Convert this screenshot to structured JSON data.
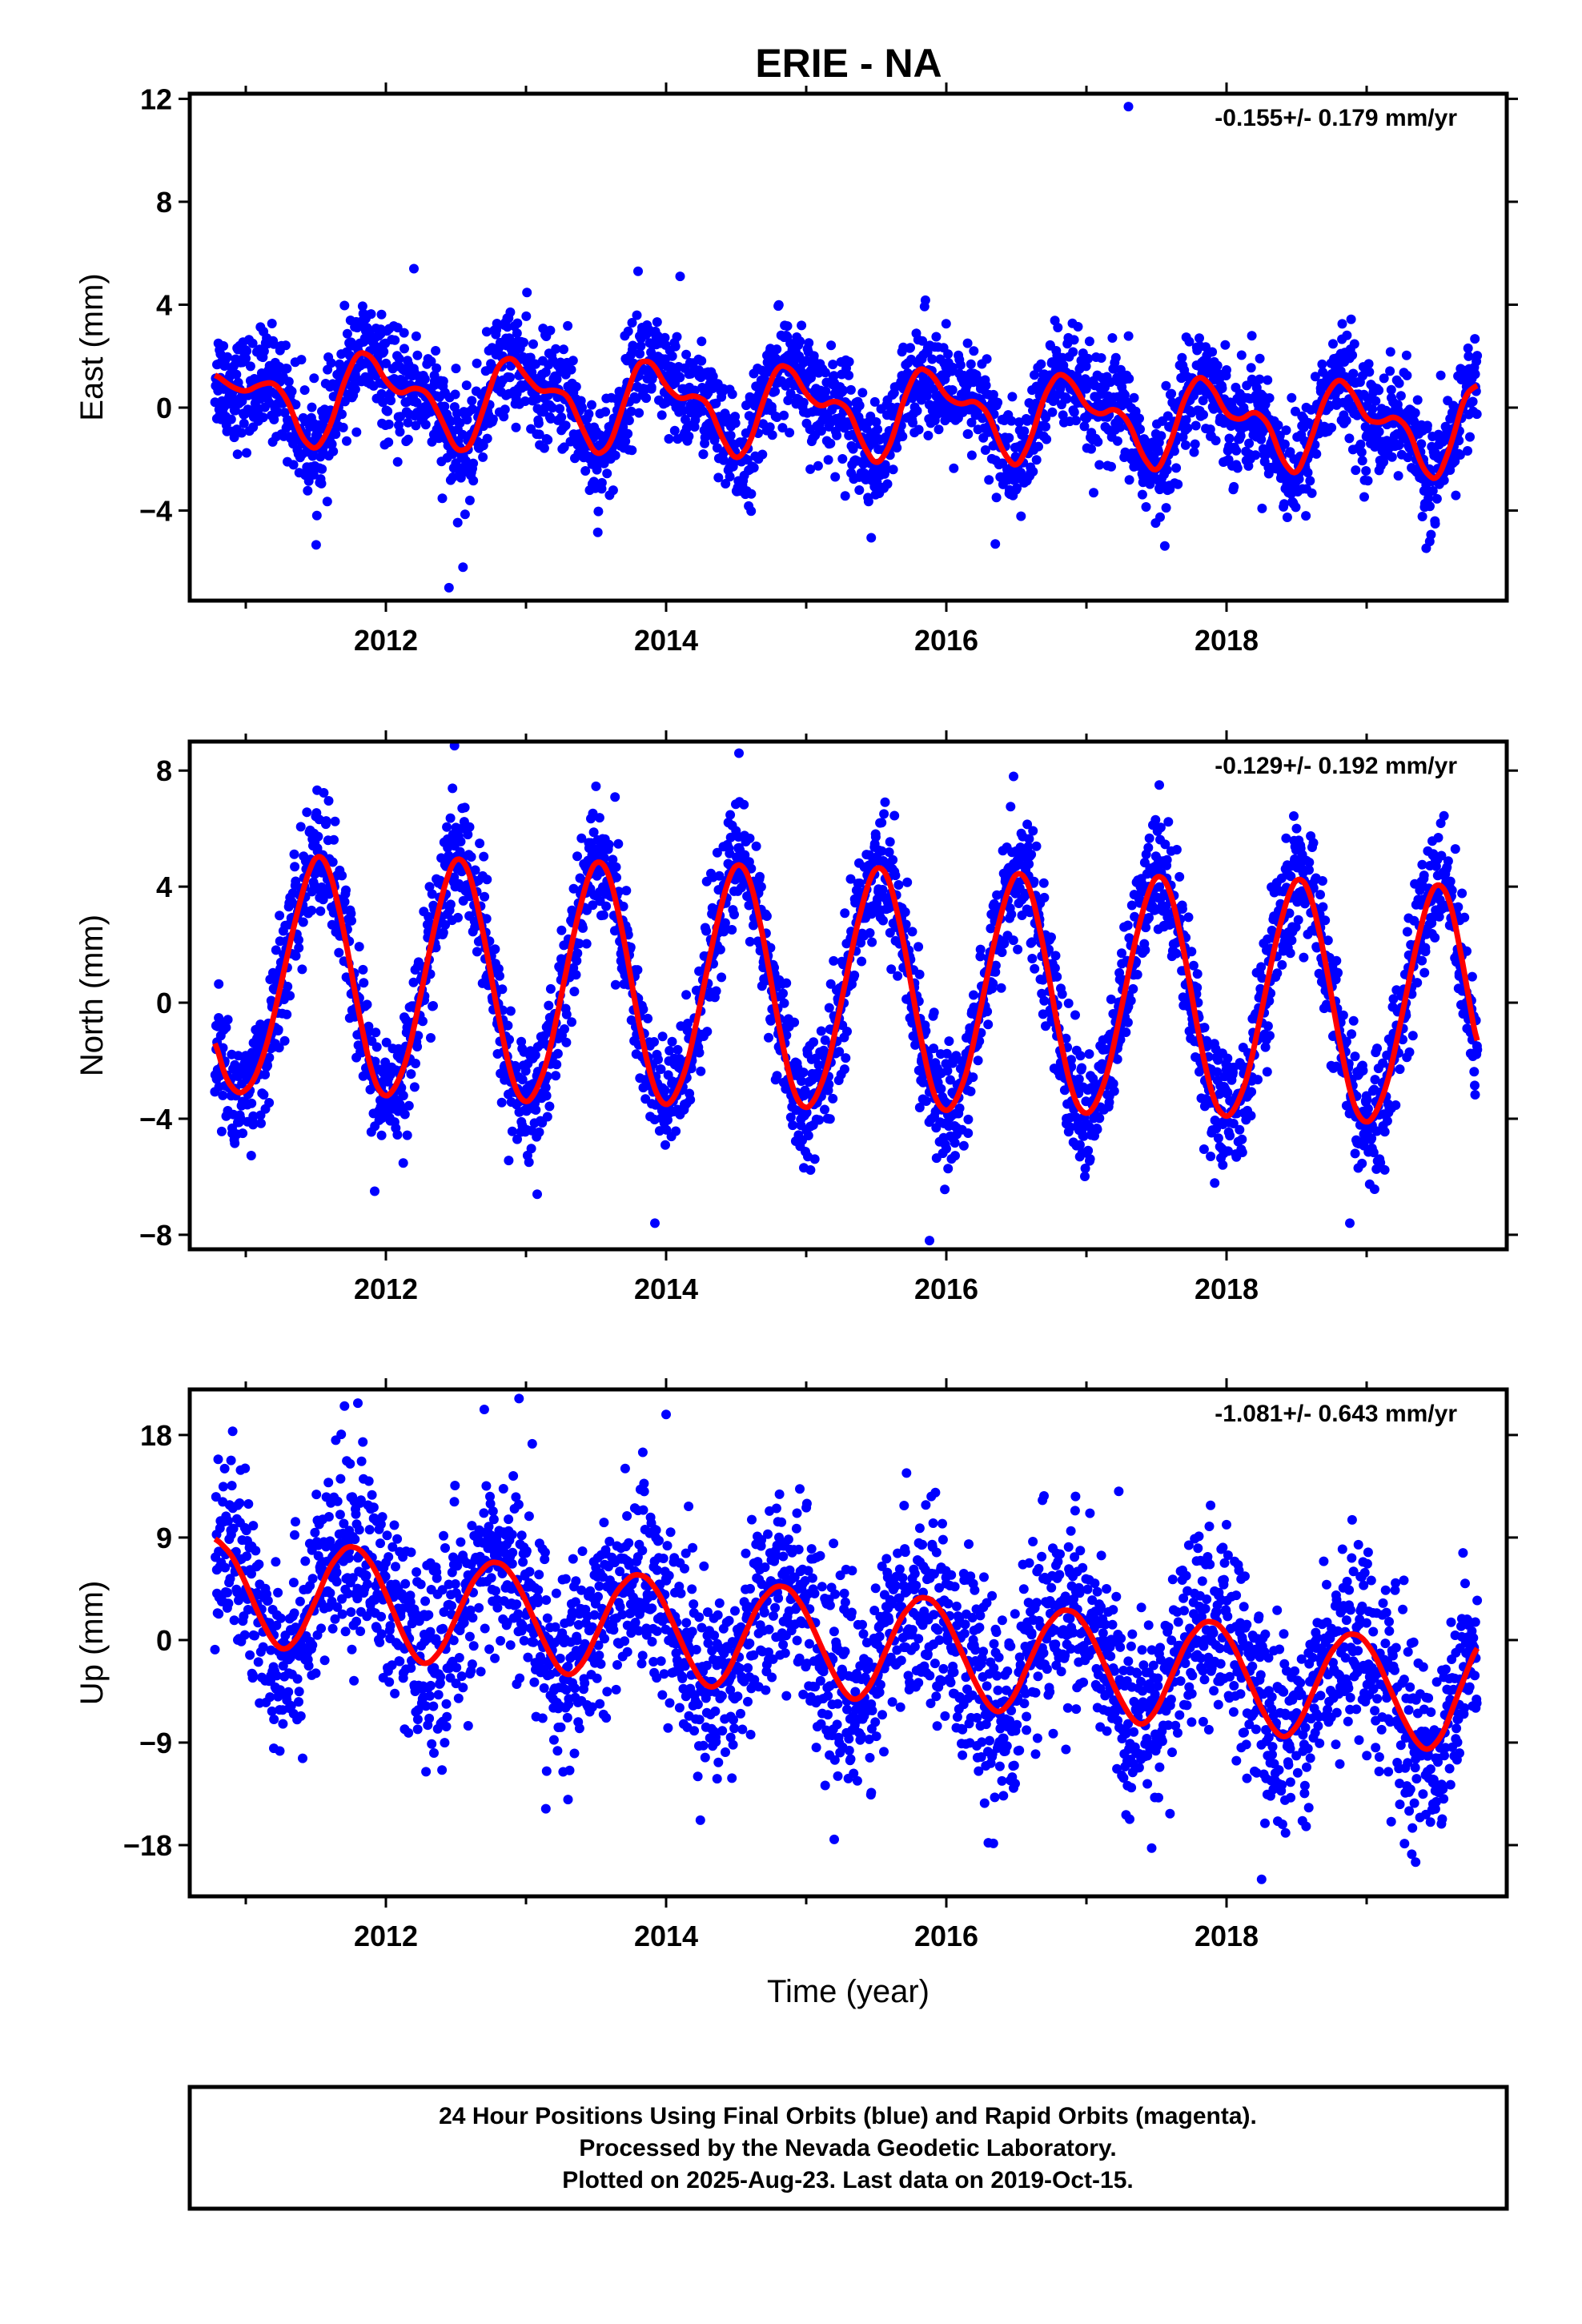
{
  "title": "ERIE - NA",
  "colors": {
    "points": "#0000ff",
    "model": "#ff0000",
    "axes": "#000000"
  },
  "chart_data": [
    {
      "type": "scatter",
      "ylabel": "East (mm)",
      "xlabel": "",
      "xlim": [
        2010.6,
        2020.0
      ],
      "ylim": [
        -7.5,
        12.2
      ],
      "yticks": [
        -4,
        0,
        4,
        8,
        12
      ],
      "xticks": [
        2012,
        2014,
        2016,
        2018
      ],
      "rate_label": "-0.155+/- 0.179 mm/yr",
      "model": {
        "start": 2010.78,
        "end": 2019.79,
        "offset": 0.2,
        "trend": -0.155,
        "annual_cos": 0.25,
        "annual_sin": 0.0,
        "semi_cos": 0.0,
        "semi_sin": 1.2,
        "t0": 2015.3
      },
      "model_curve": [
        [
          2010.78,
          1.3
        ],
        [
          2010.9,
          0.8
        ],
        [
          2011.0,
          0.6
        ],
        [
          2011.1,
          0.9
        ],
        [
          2011.2,
          1.0
        ],
        [
          2011.3,
          0.3
        ],
        [
          2011.4,
          -1.2
        ],
        [
          2011.5,
          -1.7
        ],
        [
          2011.6,
          -0.8
        ],
        [
          2011.7,
          1.0
        ],
        [
          2011.8,
          2.2
        ],
        [
          2011.9,
          2.0
        ],
        [
          2012.0,
          1.0
        ],
        [
          2012.1,
          0.5
        ],
        [
          2012.2,
          0.8
        ],
        [
          2012.3,
          0.6
        ],
        [
          2012.4,
          -0.5
        ],
        [
          2012.5,
          -1.7
        ],
        [
          2012.6,
          -1.6
        ],
        [
          2012.7,
          0.0
        ],
        [
          2012.8,
          1.7
        ],
        [
          2012.9,
          2.0
        ],
        [
          2013.0,
          1.2
        ],
        [
          2013.1,
          0.6
        ],
        [
          2013.2,
          0.7
        ],
        [
          2013.3,
          0.5
        ],
        [
          2013.4,
          -0.8
        ],
        [
          2013.5,
          -1.9
        ],
        [
          2013.6,
          -1.5
        ],
        [
          2013.7,
          0.2
        ],
        [
          2013.8,
          1.8
        ],
        [
          2013.9,
          1.8
        ],
        [
          2014.0,
          0.8
        ],
        [
          2014.1,
          0.3
        ],
        [
          2014.2,
          0.5
        ],
        [
          2014.3,
          0.2
        ],
        [
          2014.4,
          -1.2
        ],
        [
          2014.5,
          -2.1
        ],
        [
          2014.6,
          -1.4
        ],
        [
          2014.7,
          0.4
        ],
        [
          2014.8,
          1.7
        ],
        [
          2014.9,
          1.5
        ],
        [
          2015.0,
          0.5
        ],
        [
          2015.1,
          0.0
        ],
        [
          2015.2,
          0.3
        ],
        [
          2015.3,
          0.0
        ],
        [
          2015.4,
          -1.4
        ],
        [
          2015.5,
          -2.3
        ],
        [
          2015.6,
          -1.5
        ],
        [
          2015.7,
          0.4
        ],
        [
          2015.8,
          1.6
        ],
        [
          2015.9,
          1.3
        ],
        [
          2016.0,
          0.4
        ],
        [
          2016.1,
          0.1
        ],
        [
          2016.2,
          0.3
        ],
        [
          2016.3,
          -0.2
        ],
        [
          2016.4,
          -1.7
        ],
        [
          2016.5,
          -2.4
        ],
        [
          2016.6,
          -1.3
        ],
        [
          2016.7,
          0.5
        ],
        [
          2016.8,
          1.4
        ],
        [
          2016.9,
          1.0
        ],
        [
          2017.0,
          0.0
        ],
        [
          2017.1,
          -0.3
        ],
        [
          2017.2,
          0.0
        ],
        [
          2017.3,
          -0.5
        ],
        [
          2017.4,
          -1.9
        ],
        [
          2017.5,
          -2.6
        ],
        [
          2017.6,
          -1.4
        ],
        [
          2017.7,
          0.4
        ],
        [
          2017.8,
          1.3
        ],
        [
          2017.9,
          0.8
        ],
        [
          2018.0,
          -0.3
        ],
        [
          2018.1,
          -0.5
        ],
        [
          2018.2,
          -0.1
        ],
        [
          2018.3,
          -0.6
        ],
        [
          2018.4,
          -2.1
        ],
        [
          2018.5,
          -2.7
        ],
        [
          2018.6,
          -1.3
        ],
        [
          2018.7,
          0.4
        ],
        [
          2018.8,
          1.2
        ],
        [
          2018.9,
          0.6
        ],
        [
          2019.0,
          -0.5
        ],
        [
          2019.1,
          -0.6
        ],
        [
          2019.2,
          -0.3
        ],
        [
          2019.3,
          -0.8
        ],
        [
          2019.4,
          -2.4
        ],
        [
          2019.5,
          -2.9
        ],
        [
          2019.6,
          -1.5
        ],
        [
          2019.7,
          0.5
        ],
        [
          2019.79,
          0.9
        ]
      ],
      "scatter": {
        "count": 2900,
        "sigma": 1.05,
        "outliers": [
          [
            2017.3,
            11.7
          ],
          [
            2012.2,
            5.4
          ],
          [
            2012.45,
            -7.0
          ],
          [
            2012.55,
            -6.2
          ],
          [
            2013.8,
            5.3
          ],
          [
            2014.1,
            5.1
          ],
          [
            2016.35,
            -5.3
          ],
          [
            2019.45,
            -5.2
          ]
        ]
      }
    },
    {
      "type": "scatter",
      "ylabel": "North (mm)",
      "xlabel": "",
      "xlim": [
        2010.6,
        2020.0
      ],
      "ylim": [
        -8.5,
        9.0
      ],
      "yticks": [
        -8,
        -4,
        0,
        4,
        8
      ],
      "xticks": [
        2012,
        2014,
        2016,
        2018
      ],
      "rate_label": "-0.129+/- 0.192 mm/yr",
      "model_curve": [
        [
          2010.78,
          -1.2
        ],
        [
          2010.85,
          -2.6
        ],
        [
          2010.95,
          -3.2
        ],
        [
          2011.05,
          -2.8
        ],
        [
          2011.15,
          -1.5
        ],
        [
          2011.25,
          0.6
        ],
        [
          2011.35,
          2.8
        ],
        [
          2011.45,
          4.6
        ],
        [
          2011.52,
          5.2
        ],
        [
          2011.6,
          4.6
        ],
        [
          2011.7,
          2.5
        ],
        [
          2011.8,
          -0.2
        ],
        [
          2011.9,
          -2.5
        ],
        [
          2011.98,
          -3.3
        ],
        [
          2012.05,
          -3.1
        ],
        [
          2012.15,
          -2.0
        ],
        [
          2012.25,
          0.3
        ],
        [
          2012.35,
          2.7
        ],
        [
          2012.45,
          4.6
        ],
        [
          2012.52,
          5.1
        ],
        [
          2012.6,
          4.5
        ],
        [
          2012.7,
          2.3
        ],
        [
          2012.8,
          -0.4
        ],
        [
          2012.9,
          -2.7
        ],
        [
          2012.98,
          -3.5
        ],
        [
          2013.05,
          -3.3
        ],
        [
          2013.15,
          -2.1
        ],
        [
          2013.25,
          0.2
        ],
        [
          2013.35,
          2.6
        ],
        [
          2013.45,
          4.5
        ],
        [
          2013.52,
          5.0
        ],
        [
          2013.6,
          4.4
        ],
        [
          2013.7,
          2.2
        ],
        [
          2013.8,
          -0.6
        ],
        [
          2013.9,
          -2.8
        ],
        [
          2013.98,
          -3.6
        ],
        [
          2014.05,
          -3.4
        ],
        [
          2014.15,
          -2.2
        ],
        [
          2014.25,
          0.1
        ],
        [
          2014.35,
          2.5
        ],
        [
          2014.45,
          4.4
        ],
        [
          2014.52,
          4.9
        ],
        [
          2014.6,
          4.3
        ],
        [
          2014.7,
          2.1
        ],
        [
          2014.8,
          -0.7
        ],
        [
          2014.9,
          -3.0
        ],
        [
          2014.98,
          -3.7
        ],
        [
          2015.05,
          -3.5
        ],
        [
          2015.15,
          -2.3
        ],
        [
          2015.25,
          0.0
        ],
        [
          2015.35,
          2.4
        ],
        [
          2015.45,
          4.3
        ],
        [
          2015.52,
          4.8
        ],
        [
          2015.6,
          4.2
        ],
        [
          2015.7,
          2.0
        ],
        [
          2015.8,
          -0.8
        ],
        [
          2015.9,
          -3.1
        ],
        [
          2015.98,
          -3.8
        ],
        [
          2016.05,
          -3.6
        ],
        [
          2016.15,
          -2.4
        ],
        [
          2016.25,
          -0.1
        ],
        [
          2016.35,
          2.3
        ],
        [
          2016.45,
          4.1
        ],
        [
          2016.52,
          4.6
        ],
        [
          2016.6,
          4.0
        ],
        [
          2016.7,
          1.8
        ],
        [
          2016.8,
          -1.0
        ],
        [
          2016.9,
          -3.2
        ],
        [
          2016.98,
          -3.9
        ],
        [
          2017.05,
          -3.7
        ],
        [
          2017.15,
          -2.5
        ],
        [
          2017.25,
          -0.2
        ],
        [
          2017.35,
          2.2
        ],
        [
          2017.45,
          4.0
        ],
        [
          2017.52,
          4.5
        ],
        [
          2017.6,
          3.9
        ],
        [
          2017.7,
          1.7
        ],
        [
          2017.8,
          -1.1
        ],
        [
          2017.9,
          -3.3
        ],
        [
          2017.98,
          -4.0
        ],
        [
          2018.05,
          -3.8
        ],
        [
          2018.15,
          -2.6
        ],
        [
          2018.25,
          -0.3
        ],
        [
          2018.35,
          2.1
        ],
        [
          2018.45,
          3.9
        ],
        [
          2018.52,
          4.4
        ],
        [
          2018.6,
          3.8
        ],
        [
          2018.7,
          1.6
        ],
        [
          2018.8,
          -1.2
        ],
        [
          2018.9,
          -3.5
        ],
        [
          2018.98,
          -4.2
        ],
        [
          2019.05,
          -4.0
        ],
        [
          2019.15,
          -2.8
        ],
        [
          2019.25,
          -0.5
        ],
        [
          2019.35,
          1.9
        ],
        [
          2019.45,
          3.8
        ],
        [
          2019.52,
          4.2
        ],
        [
          2019.6,
          3.5
        ],
        [
          2019.7,
          1.0
        ],
        [
          2019.79,
          -1.6
        ]
      ],
      "scatter": {
        "count": 2900,
        "sigma": 1.05,
        "outliers": [
          [
            2014.52,
            8.6
          ],
          [
            2013.92,
            -7.6
          ],
          [
            2015.88,
            -8.2
          ],
          [
            2011.92,
            -6.5
          ],
          [
            2013.08,
            -6.6
          ],
          [
            2018.88,
            -7.6
          ],
          [
            2017.52,
            7.5
          ],
          [
            2016.48,
            7.8
          ]
        ]
      }
    },
    {
      "type": "scatter",
      "ylabel": "Up (mm)",
      "xlabel": "Time (year)",
      "xlim": [
        2010.6,
        2020.0
      ],
      "ylim": [
        -22.5,
        22.0
      ],
      "yticks": [
        -18,
        -9,
        0,
        9,
        18
      ],
      "xticks": [
        2012,
        2014,
        2016,
        2018
      ],
      "rate_label": "-1.081+/- 0.643 mm/yr",
      "model_curve": [
        [
          2010.78,
          9.0
        ],
        [
          2010.9,
          7.5
        ],
        [
          2011.0,
          5.0
        ],
        [
          2011.1,
          2.0
        ],
        [
          2011.2,
          -0.3
        ],
        [
          2011.28,
          -1.0
        ],
        [
          2011.38,
          0.3
        ],
        [
          2011.5,
          3.5
        ],
        [
          2011.6,
          6.5
        ],
        [
          2011.72,
          8.3
        ],
        [
          2011.82,
          8.0
        ],
        [
          2011.92,
          6.3
        ],
        [
          2012.02,
          3.5
        ],
        [
          2012.12,
          0.5
        ],
        [
          2012.22,
          -1.8
        ],
        [
          2012.3,
          -2.2
        ],
        [
          2012.4,
          -0.8
        ],
        [
          2012.52,
          2.5
        ],
        [
          2012.62,
          5.2
        ],
        [
          2012.74,
          6.9
        ],
        [
          2012.84,
          6.7
        ],
        [
          2012.94,
          5.0
        ],
        [
          2013.04,
          2.3
        ],
        [
          2013.14,
          -0.5
        ],
        [
          2013.24,
          -2.7
        ],
        [
          2013.32,
          -3.2
        ],
        [
          2013.42,
          -1.8
        ],
        [
          2013.54,
          1.5
        ],
        [
          2013.64,
          4.2
        ],
        [
          2013.76,
          5.8
        ],
        [
          2013.86,
          5.6
        ],
        [
          2013.96,
          3.9
        ],
        [
          2014.06,
          1.2
        ],
        [
          2014.16,
          -1.6
        ],
        [
          2014.26,
          -3.8
        ],
        [
          2014.34,
          -4.3
        ],
        [
          2014.44,
          -2.9
        ],
        [
          2014.56,
          0.5
        ],
        [
          2014.66,
          3.2
        ],
        [
          2014.78,
          4.8
        ],
        [
          2014.88,
          4.6
        ],
        [
          2014.98,
          2.9
        ],
        [
          2015.08,
          0.2
        ],
        [
          2015.18,
          -2.6
        ],
        [
          2015.28,
          -4.8
        ],
        [
          2015.36,
          -5.4
        ],
        [
          2015.46,
          -4.0
        ],
        [
          2015.58,
          -0.6
        ],
        [
          2015.68,
          2.1
        ],
        [
          2015.8,
          3.8
        ],
        [
          2015.9,
          3.6
        ],
        [
          2016.0,
          1.9
        ],
        [
          2016.1,
          -0.8
        ],
        [
          2016.2,
          -3.6
        ],
        [
          2016.3,
          -5.8
        ],
        [
          2016.38,
          -6.5
        ],
        [
          2016.48,
          -5.1
        ],
        [
          2016.6,
          -1.7
        ],
        [
          2016.7,
          1.0
        ],
        [
          2016.82,
          2.7
        ],
        [
          2016.92,
          2.5
        ],
        [
          2017.02,
          0.8
        ],
        [
          2017.12,
          -1.9
        ],
        [
          2017.22,
          -4.7
        ],
        [
          2017.32,
          -6.9
        ],
        [
          2017.4,
          -7.6
        ],
        [
          2017.5,
          -6.2
        ],
        [
          2017.62,
          -2.8
        ],
        [
          2017.72,
          0.0
        ],
        [
          2017.84,
          1.7
        ],
        [
          2017.94,
          1.5
        ],
        [
          2018.04,
          -0.2
        ],
        [
          2018.14,
          -3.0
        ],
        [
          2018.24,
          -5.8
        ],
        [
          2018.34,
          -8.0
        ],
        [
          2018.42,
          -8.7
        ],
        [
          2018.52,
          -7.3
        ],
        [
          2018.64,
          -3.9
        ],
        [
          2018.74,
          -1.1
        ],
        [
          2018.86,
          0.6
        ],
        [
          2018.96,
          0.4
        ],
        [
          2019.06,
          -1.3
        ],
        [
          2019.16,
          -4.1
        ],
        [
          2019.26,
          -6.9
        ],
        [
          2019.36,
          -9.1
        ],
        [
          2019.44,
          -9.8
        ],
        [
          2019.54,
          -8.4
        ],
        [
          2019.66,
          -4.5
        ],
        [
          2019.79,
          -0.4
        ]
      ],
      "scatter": {
        "count": 2900,
        "sigma": 4.2,
        "outliers": [
          [
            2011.8,
            20.8
          ],
          [
            2012.95,
            21.2
          ],
          [
            2014.0,
            19.8
          ],
          [
            2018.25,
            -21.0
          ],
          [
            2019.35,
            -19.5
          ],
          [
            2015.2,
            -17.5
          ],
          [
            2016.3,
            -17.8
          ],
          [
            2011.2,
            -9.5
          ],
          [
            2013.3,
            -14.0
          ]
        ]
      }
    }
  ],
  "footer": {
    "line1": "24 Hour Positions Using Final Orbits (blue) and Rapid Orbits (magenta).",
    "line2": "Processed by the Nevada Geodetic Laboratory.",
    "line3": "Plotted on 2025-Aug-23. Last data on 2019-Oct-15."
  }
}
